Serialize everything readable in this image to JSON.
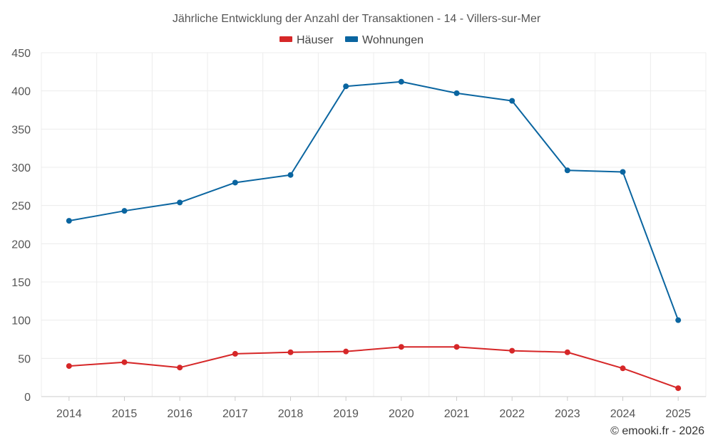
{
  "chart_data": {
    "type": "line",
    "title": "Jährliche Entwicklung der Anzahl der Transaktionen - 14 - Villers-sur-Mer",
    "categories": [
      "2014",
      "2015",
      "2016",
      "2017",
      "2018",
      "2019",
      "2020",
      "2021",
      "2022",
      "2023",
      "2024",
      "2025"
    ],
    "series": [
      {
        "name": "Häuser",
        "color": "#d62728",
        "values": [
          40,
          45,
          38,
          56,
          58,
          59,
          65,
          65,
          60,
          58,
          37,
          11
        ]
      },
      {
        "name": "Wohnungen",
        "color": "#0a65a0",
        "values": [
          230,
          243,
          254,
          280,
          290,
          406,
          412,
          397,
          387,
          296,
          294,
          100
        ]
      }
    ],
    "ylim": [
      0,
      450
    ],
    "yticks": [
      0,
      50,
      100,
      150,
      200,
      250,
      300,
      350,
      400,
      450
    ],
    "xlabel": "",
    "ylabel": "",
    "legend": "top-center",
    "grid": true
  },
  "footer": {
    "credit": "© emooki.fr - 2026"
  }
}
